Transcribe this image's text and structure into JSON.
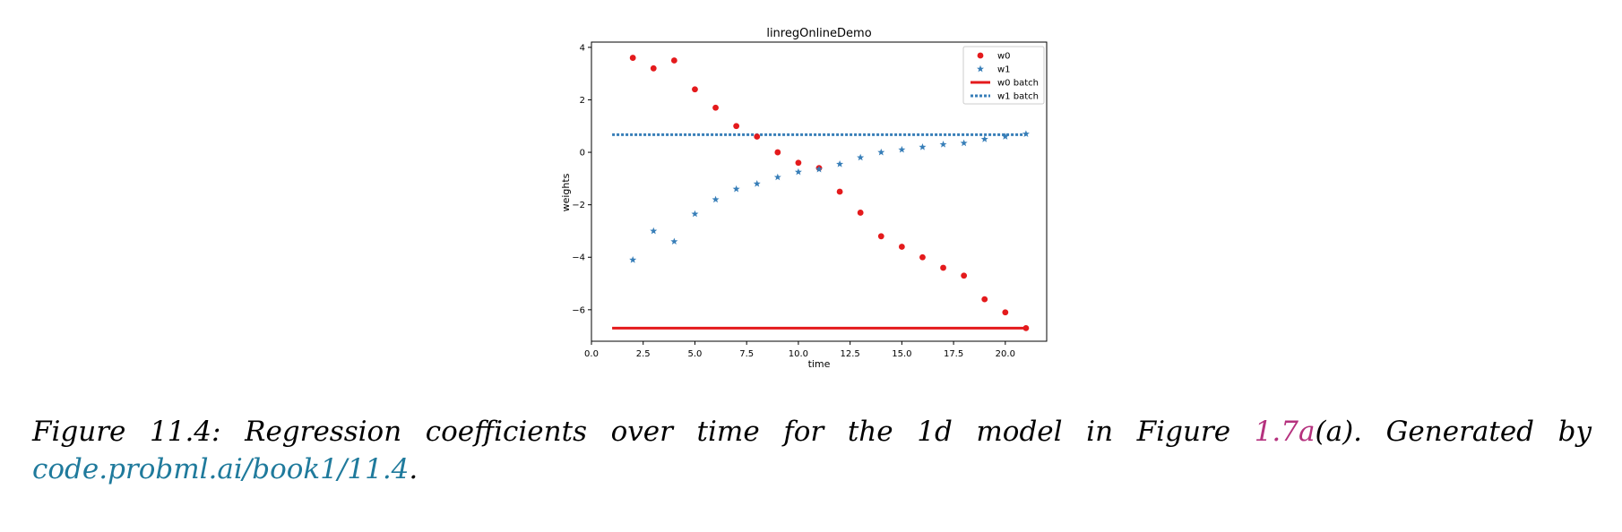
{
  "chart_data": {
    "type": "scatter",
    "title": "linregOnlineDemo",
    "xlabel": "time",
    "ylabel": "weights",
    "xlim": [
      0.0,
      22.0
    ],
    "ylim": [
      -7.2,
      4.2
    ],
    "x_ticks": [
      "0.0",
      "2.5",
      "5.0",
      "7.5",
      "10.0",
      "12.5",
      "15.0",
      "17.5",
      "20.0"
    ],
    "x_tick_values": [
      0,
      2.5,
      5,
      7.5,
      10,
      12.5,
      15,
      17.5,
      20
    ],
    "y_ticks": [
      "4",
      "2",
      "0",
      "−2",
      "−4",
      "−6"
    ],
    "y_tick_values": [
      4,
      2,
      0,
      -2,
      -4,
      -6
    ],
    "grid": false,
    "legend_position": "top-right",
    "series": [
      {
        "name": "w0",
        "marker": "circle",
        "color": "#e41a1c",
        "x": [
          2,
          3,
          4,
          5,
          6,
          7,
          8,
          9,
          10,
          11,
          12,
          13,
          14,
          15,
          16,
          17,
          18,
          19,
          20,
          21
        ],
        "y": [
          3.6,
          3.2,
          3.5,
          2.4,
          1.7,
          1.0,
          0.6,
          0.0,
          -0.4,
          -0.6,
          -1.5,
          -2.3,
          -3.2,
          -3.6,
          -4.0,
          -4.4,
          -4.7,
          -5.6,
          -6.1,
          -6.7
        ]
      },
      {
        "name": "w1",
        "marker": "star",
        "color": "#377eb8",
        "x": [
          2,
          3,
          4,
          5,
          6,
          7,
          8,
          9,
          10,
          11,
          12,
          13,
          14,
          15,
          16,
          17,
          18,
          19,
          20,
          21
        ],
        "y": [
          -4.1,
          -3.0,
          -3.4,
          -2.35,
          -1.8,
          -1.4,
          -1.2,
          -0.95,
          -0.75,
          -0.65,
          -0.45,
          -0.2,
          0.0,
          0.1,
          0.2,
          0.3,
          0.35,
          0.5,
          0.6,
          0.7
        ]
      },
      {
        "name": "w0 batch",
        "line": "solid",
        "color": "#e41a1c",
        "x": [
          1,
          21
        ],
        "y": [
          -6.7,
          -6.7
        ]
      },
      {
        "name": "w1 batch",
        "line": "dotted",
        "color": "#377eb8",
        "x": [
          1,
          21
        ],
        "y": [
          0.67,
          0.67
        ]
      }
    ]
  },
  "caption": {
    "label": "Figure 11.4:",
    "text": "Regression coefficients over time for the 1d model in Figure",
    "fig_ref": "1.7a",
    "after_ref": "(a).",
    "generated": "Generated by",
    "link": "code.probml.ai/book1/11.4",
    "end": "."
  }
}
